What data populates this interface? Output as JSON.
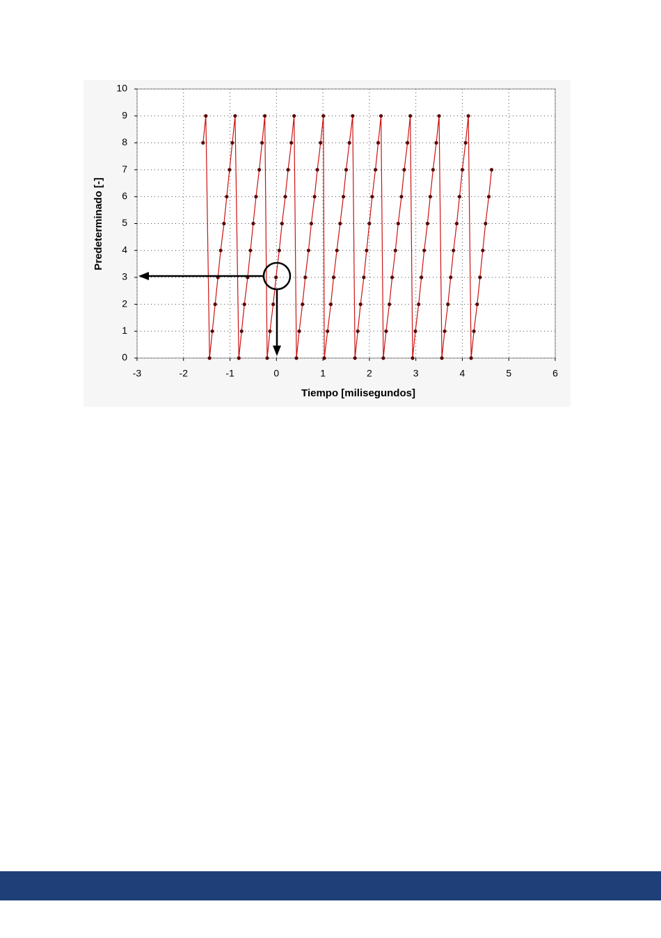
{
  "chart_data": {
    "type": "line",
    "xlabel": "Tiempo [milisegundos]",
    "ylabel": "Predeterminado [-]",
    "x": [
      -1.58,
      -1.52,
      -1.44,
      -1.38,
      -1.32,
      -1.26,
      -1.2,
      -1.13,
      -1.07,
      -1.01,
      -0.95,
      -0.89,
      -0.81,
      -0.75,
      -0.69,
      -0.62,
      -0.56,
      -0.5,
      -0.44,
      -0.37,
      -0.31,
      -0.25,
      -0.2,
      -0.14,
      -0.07,
      -0.01,
      0.06,
      0.12,
      0.19,
      0.25,
      0.32,
      0.38,
      0.43,
      0.49,
      0.56,
      0.62,
      0.69,
      0.75,
      0.82,
      0.88,
      0.95,
      1.01,
      1.03,
      1.1,
      1.17,
      1.23,
      1.3,
      1.37,
      1.44,
      1.5,
      1.57,
      1.64,
      1.69,
      1.75,
      1.81,
      1.88,
      1.94,
      2.0,
      2.06,
      2.13,
      2.19,
      2.25,
      2.3,
      2.36,
      2.43,
      2.49,
      2.56,
      2.62,
      2.69,
      2.75,
      2.82,
      2.88,
      2.93,
      2.99,
      3.06,
      3.12,
      3.18,
      3.25,
      3.31,
      3.37,
      3.44,
      3.5,
      3.56,
      3.62,
      3.69,
      3.75,
      3.81,
      3.88,
      3.94,
      4.0,
      4.07,
      4.13,
      4.19,
      4.25,
      4.32,
      4.38,
      4.44,
      4.5,
      4.57,
      4.63
    ],
    "values": [
      8,
      9,
      0,
      1,
      2,
      3,
      4,
      5,
      6,
      7,
      8,
      9,
      0,
      1,
      2,
      3,
      4,
      5,
      6,
      7,
      8,
      9,
      0,
      1,
      2,
      3,
      4,
      5,
      6,
      7,
      8,
      9,
      0,
      1,
      2,
      3,
      4,
      5,
      6,
      7,
      8,
      9,
      0,
      1,
      2,
      3,
      4,
      5,
      6,
      7,
      8,
      9,
      0,
      1,
      2,
      3,
      4,
      5,
      6,
      7,
      8,
      9,
      0,
      1,
      2,
      3,
      4,
      5,
      6,
      7,
      8,
      9,
      0,
      1,
      2,
      3,
      4,
      5,
      6,
      7,
      8,
      9,
      0,
      1,
      2,
      3,
      4,
      5,
      6,
      7,
      8,
      9,
      0,
      1,
      2,
      3,
      4,
      5,
      6,
      7
    ],
    "color": "#cc1111",
    "marker_color": "#5a0a0a",
    "xlim": [
      -3,
      6
    ],
    "xticks": [
      -3,
      -2,
      -1,
      0,
      1,
      2,
      3,
      4,
      5,
      6
    ],
    "ylim": [
      0,
      10
    ],
    "yticks": [
      0,
      1,
      2,
      3,
      4,
      5,
      6,
      7,
      8,
      9,
      10
    ],
    "grid": true
  }
}
